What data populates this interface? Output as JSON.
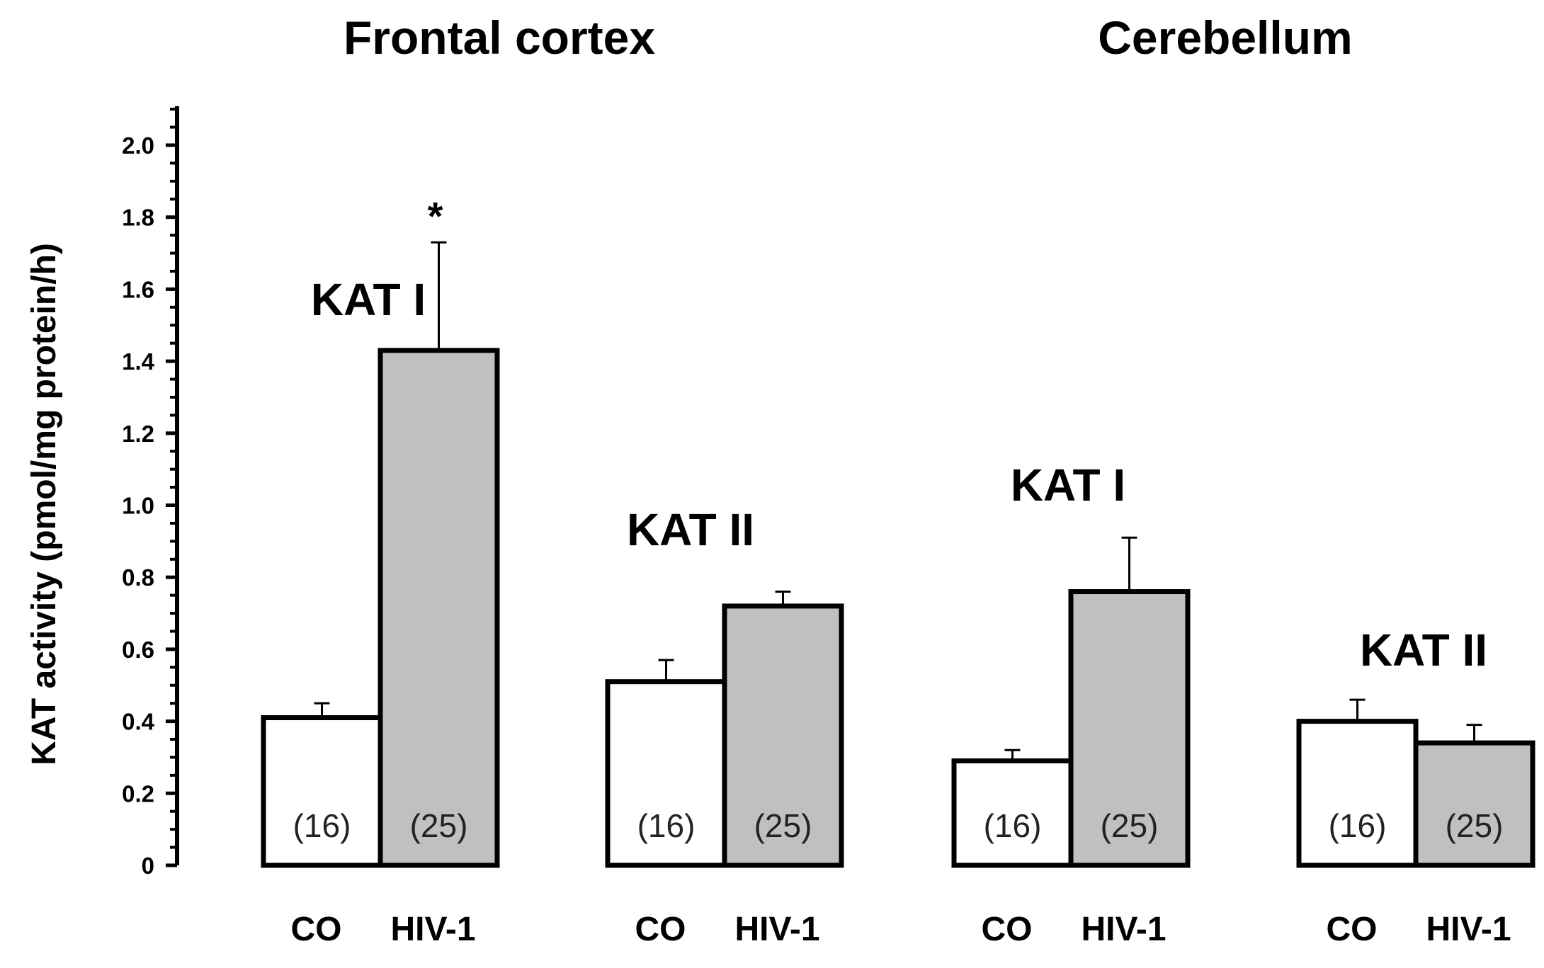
{
  "chart_data": {
    "type": "bar",
    "ylabel": "KAT activity (pmol/mg protein/h)",
    "ylim": [
      0,
      2.0
    ],
    "yticks": [
      "0",
      "0.2",
      "0.4",
      "0.6",
      "0.8",
      "1.0",
      "1.2",
      "1.4",
      "1.6",
      "1.8",
      "2.0"
    ],
    "ytick_values": [
      0,
      0.2,
      0.4,
      0.6,
      0.8,
      1.0,
      1.2,
      1.4,
      1.6,
      1.8,
      2.0
    ],
    "regions": [
      {
        "title": "Frontal cortex",
        "groups": [
          {
            "label": "KAT I",
            "bars": [
              {
                "condition": "CO",
                "value": 0.41,
                "error": 0.04,
                "n": "(16)",
                "color": "#ffffff",
                "significance": ""
              },
              {
                "condition": "HIV-1",
                "value": 1.43,
                "error": 0.3,
                "n": "(25)",
                "color": "#c0c0c0",
                "significance": "*"
              }
            ]
          },
          {
            "label": "KAT II",
            "bars": [
              {
                "condition": "CO",
                "value": 0.51,
                "error": 0.06,
                "n": "(16)",
                "color": "#ffffff",
                "significance": ""
              },
              {
                "condition": "HIV-1",
                "value": 0.72,
                "error": 0.04,
                "n": "(25)",
                "color": "#c0c0c0",
                "significance": ""
              }
            ]
          }
        ]
      },
      {
        "title": "Cerebellum",
        "groups": [
          {
            "label": "KAT I",
            "bars": [
              {
                "condition": "CO",
                "value": 0.29,
                "error": 0.03,
                "n": "(16)",
                "color": "#ffffff",
                "significance": ""
              },
              {
                "condition": "HIV-1",
                "value": 0.76,
                "error": 0.15,
                "n": "(25)",
                "color": "#c0c0c0",
                "significance": ""
              }
            ]
          },
          {
            "label": "KAT II",
            "bars": [
              {
                "condition": "CO",
                "value": 0.4,
                "error": 0.06,
                "n": "(16)",
                "color": "#ffffff",
                "significance": ""
              },
              {
                "condition": "HIV-1",
                "value": 0.34,
                "error": 0.05,
                "n": "(25)",
                "color": "#c0c0c0",
                "significance": ""
              }
            ]
          }
        ]
      }
    ]
  }
}
